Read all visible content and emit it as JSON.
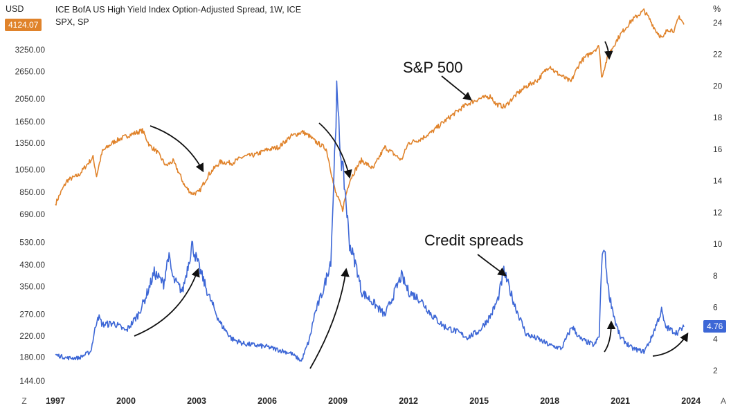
{
  "header": {
    "left_unit": "USD",
    "right_unit": "%",
    "title_line1": "ICE BofA US High Yield Index Option-Adjusted Spread, 1W, ICE",
    "title_line2": "SPX, SP",
    "corner_left": "Z",
    "corner_right": "A"
  },
  "colors": {
    "spx": "#e0832b",
    "spread": "#3d67d6",
    "arrow": "#111111"
  },
  "chart_data": {
    "type": "line",
    "title": "ICE BofA US High Yield Index Option-Adjusted Spread, 1W, ICE / SPX, SP",
    "x_ticks": [
      "1997",
      "2000",
      "2003",
      "2006",
      "2009",
      "2012",
      "2015",
      "2018",
      "2021",
      "2024"
    ],
    "xlim": [
      1997,
      2024.2
    ],
    "left_axis": {
      "label": "USD",
      "scale": "log",
      "ticks": [
        "3250.00",
        "2650.00",
        "2050.00",
        "1650.00",
        "1350.00",
        "1050.00",
        "850.00",
        "690.00",
        "530.00",
        "430.00",
        "350.00",
        "270.00",
        "220.00",
        "180.00",
        "144.00"
      ],
      "last_value": "4124.07"
    },
    "right_axis": {
      "label": "%",
      "ticks": [
        "24",
        "22",
        "20",
        "18",
        "16",
        "14",
        "12",
        "10",
        "8",
        "6",
        "4",
        "2"
      ],
      "last_value": "4.76"
    },
    "series": [
      {
        "name": "S&P 500",
        "axis": "left",
        "x": [
          1997.0,
          1997.5,
          1998.0,
          1998.6,
          1998.75,
          1999.0,
          1999.5,
          2000.0,
          2000.7,
          2001.0,
          2001.3,
          2001.7,
          2002.0,
          2002.5,
          2002.8,
          2003.1,
          2003.5,
          2004.0,
          2004.5,
          2005.0,
          2005.5,
          2006.0,
          2006.5,
          2007.0,
          2007.5,
          2007.8,
          2008.0,
          2008.5,
          2008.8,
          2008.9,
          2009.2,
          2009.5,
          2010.0,
          2010.5,
          2011.0,
          2011.7,
          2012.0,
          2012.5,
          2013.0,
          2013.5,
          2014.0,
          2014.5,
          2015.0,
          2015.5,
          2015.7,
          2016.1,
          2016.5,
          2017.0,
          2017.5,
          2018.0,
          2018.2,
          2018.9,
          2019.3,
          2019.9,
          2020.1,
          2020.2,
          2020.5,
          2021.0,
          2021.5,
          2022.0,
          2022.2,
          2022.5,
          2022.8,
          2023.0,
          2023.3,
          2023.5,
          2023.7
        ],
        "y": [
          760,
          950,
          1000,
          1180,
          990,
          1250,
          1370,
          1440,
          1520,
          1320,
          1250,
          1090,
          1140,
          900,
          840,
          850,
          1000,
          1130,
          1120,
          1190,
          1210,
          1270,
          1300,
          1440,
          1500,
          1440,
          1380,
          1280,
          930,
          850,
          720,
          950,
          1150,
          1060,
          1300,
          1150,
          1350,
          1400,
          1500,
          1650,
          1800,
          1950,
          2050,
          2100,
          1950,
          1900,
          2100,
          2300,
          2450,
          2800,
          2650,
          2400,
          2900,
          3250,
          3350,
          2500,
          3100,
          3750,
          4300,
          4700,
          4400,
          3900,
          3600,
          3950,
          3900,
          4450,
          4124
        ]
      },
      {
        "name": "Credit spreads",
        "axis": "right",
        "x": [
          1997.0,
          1997.5,
          1998.0,
          1998.5,
          1998.8,
          1999.0,
          1999.5,
          2000.0,
          2000.5,
          2000.8,
          2001.2,
          2001.6,
          2001.8,
          2002.0,
          2002.4,
          2002.75,
          2002.8,
          2003.0,
          2003.5,
          2004.0,
          2004.5,
          2005.0,
          2005.5,
          2006.0,
          2006.5,
          2007.0,
          2007.45,
          2007.8,
          2008.0,
          2008.4,
          2008.7,
          2008.8,
          2008.95,
          2009.1,
          2009.3,
          2009.5,
          2009.8,
          2010.0,
          2010.5,
          2011.0,
          2011.7,
          2012.0,
          2012.5,
          2013.0,
          2013.5,
          2014.0,
          2014.5,
          2015.0,
          2015.5,
          2015.8,
          2016.05,
          2016.5,
          2017.0,
          2017.5,
          2018.0,
          2018.5,
          2018.95,
          2019.3,
          2019.9,
          2020.1,
          2020.2,
          2020.3,
          2020.5,
          2020.8,
          2021.0,
          2021.5,
          2022.0,
          2022.3,
          2022.5,
          2022.75,
          2022.9,
          2023.1,
          2023.4,
          2023.7
        ],
        "y": [
          3.0,
          2.8,
          2.8,
          3.2,
          5.5,
          4.9,
          5.0,
          4.5,
          5.5,
          6.5,
          8.2,
          7.5,
          9.3,
          7.8,
          7.0,
          9.5,
          10.0,
          9.0,
          6.8,
          5.0,
          4.0,
          3.7,
          3.6,
          3.5,
          3.3,
          3.1,
          2.6,
          4.0,
          5.5,
          7.2,
          9.0,
          13.0,
          19.5,
          16.0,
          13.5,
          10.0,
          8.5,
          7.0,
          6.3,
          5.5,
          8.0,
          7.0,
          6.5,
          5.5,
          4.8,
          4.5,
          4.1,
          4.5,
          5.5,
          6.5,
          8.3,
          6.2,
          4.3,
          4.0,
          3.6,
          3.4,
          4.8,
          4.0,
          3.6,
          4.2,
          8.5,
          10.0,
          7.0,
          5.0,
          4.1,
          3.4,
          3.2,
          4.0,
          4.8,
          5.8,
          4.8,
          4.6,
          4.4,
          4.76
        ]
      }
    ],
    "annotations": [
      "S&P 500",
      "Credit spreads"
    ]
  }
}
